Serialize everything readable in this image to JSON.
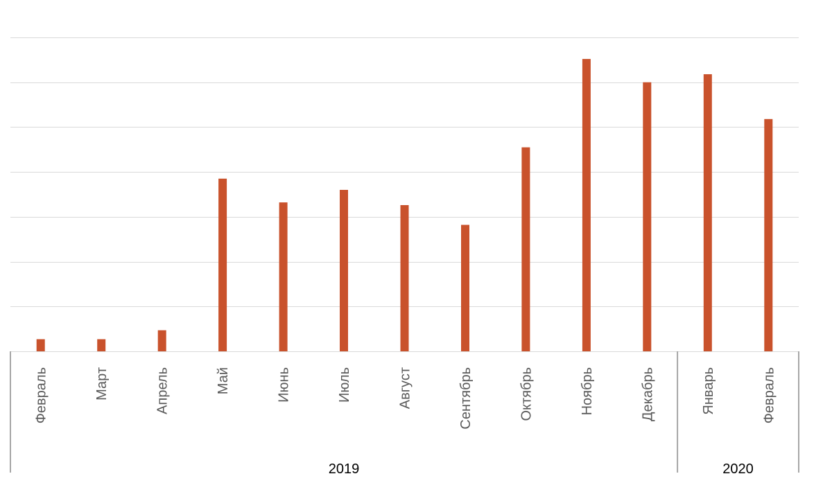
{
  "chart_data": {
    "type": "bar",
    "categories": [
      "Февраль",
      "Март",
      "Апрель",
      "Май",
      "Июнь",
      "Июль",
      "Август",
      "Сентябрь",
      "Октябрь",
      "Ноябрь",
      "Декабрь",
      "Январь",
      "Февраль"
    ],
    "groups": [
      {
        "label": "2019",
        "count": 11
      },
      {
        "label": "2020",
        "count": 2
      }
    ],
    "series": [
      {
        "values": [
          0.27,
          0.27,
          0.47,
          3.85,
          3.32,
          3.6,
          3.26,
          2.82,
          4.55,
          6.52,
          6.0,
          6.18,
          5.18
        ],
        "color": "#c9522c"
      }
    ],
    "ylim": [
      0,
      7
    ],
    "y_gridlines": [
      0,
      1,
      2,
      3,
      4,
      5,
      6,
      7
    ],
    "y_tick_labels_visible": false,
    "grid": true,
    "legend": "none"
  }
}
